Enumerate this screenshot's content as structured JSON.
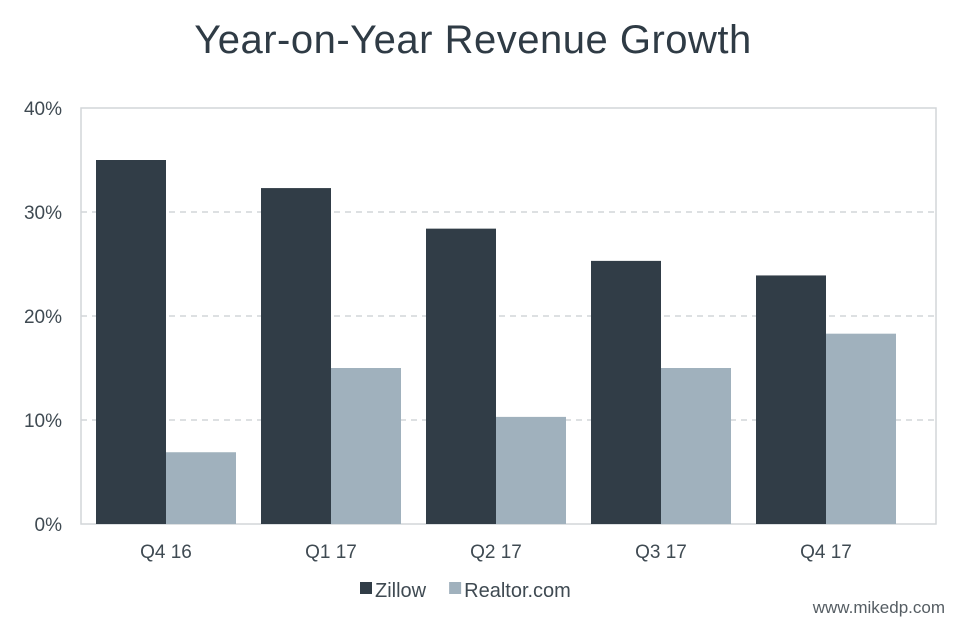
{
  "chart_data": {
    "type": "bar",
    "title": "Year-on-Year Revenue Growth",
    "xlabel": "",
    "ylabel": "",
    "categories": [
      "Q4 16",
      "Q1 17",
      "Q2 17",
      "Q3 17",
      "Q4 17"
    ],
    "series": [
      {
        "name": "Zillow",
        "values": [
          35,
          32.3,
          28.4,
          25.3,
          23.9
        ],
        "color": "#313d47"
      },
      {
        "name": "Realtor.com",
        "values": [
          6.9,
          15,
          10.3,
          15,
          18.3
        ],
        "color": "#a0b1bd"
      }
    ],
    "ylim": [
      0,
      40
    ],
    "y_ticks": [
      "0%",
      "10%",
      "20%",
      "30%",
      "40%"
    ],
    "grid": true,
    "legend_position": "bottom-center"
  },
  "credit": "www.mikedp.com"
}
